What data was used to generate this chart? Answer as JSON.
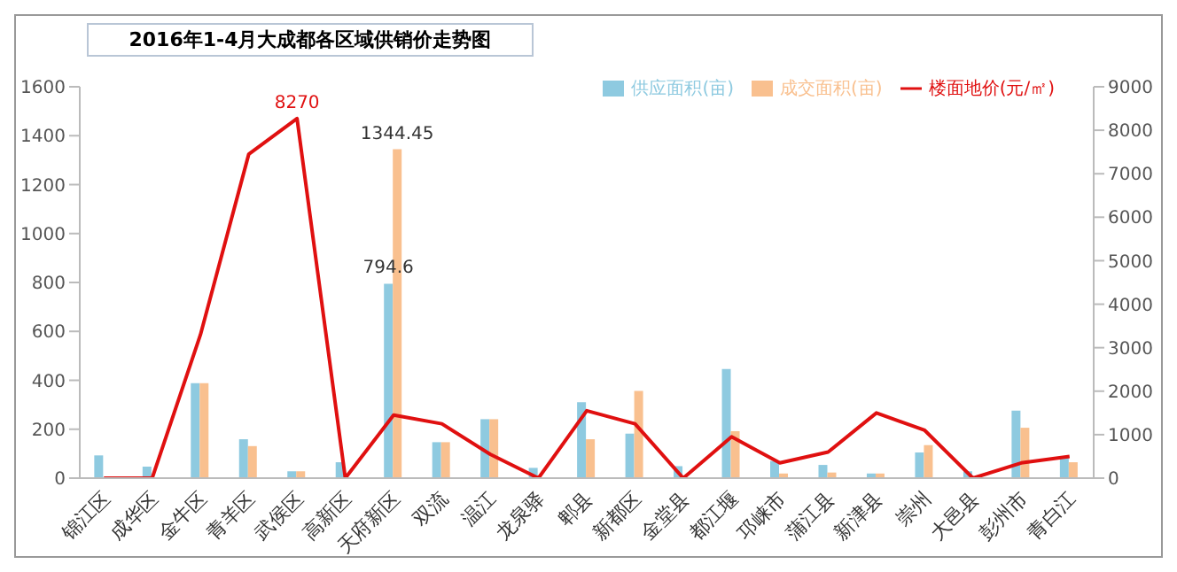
{
  "chart_data": {
    "type": "bar",
    "title": "2016年1-4月大成都各区域供销价走势图",
    "categories": [
      "锦江区",
      "成华区",
      "金牛区",
      "青羊区",
      "武侯区",
      "高新区",
      "天府新区",
      "双流",
      "温江",
      "龙泉驿",
      "郫县",
      "新都区",
      "金堂县",
      "都江堰",
      "邛崃市",
      "蒲江县",
      "新津县",
      "崇州",
      "大邑县",
      "彭州市",
      "青白江"
    ],
    "series": [
      {
        "name": "供应面积(亩)",
        "color": "#8ecae0",
        "values": [
          93,
          47,
          388,
          159,
          28,
          65,
          794.6,
          147,
          241,
          42,
          310,
          182,
          49,
          446,
          70,
          54,
          19,
          105,
          28,
          276,
          89
        ],
        "value_labels": [
          null,
          null,
          null,
          null,
          null,
          null,
          "794.6",
          null,
          null,
          null,
          null,
          null,
          null,
          null,
          null,
          null,
          null,
          null,
          null,
          null,
          null
        ]
      },
      {
        "name": "成交面积(亩)",
        "color": "#f9c08f",
        "values": [
          0,
          0,
          388,
          131,
          28,
          0,
          1344.45,
          147,
          241,
          0,
          159,
          357,
          0,
          192,
          19,
          23,
          19,
          135,
          0,
          206,
          65
        ],
        "value_labels": [
          null,
          null,
          null,
          null,
          null,
          null,
          "1344.45",
          null,
          null,
          null,
          null,
          null,
          null,
          null,
          null,
          null,
          null,
          null,
          null,
          null,
          null
        ]
      },
      {
        "name": "楼面地价(元/㎡)",
        "type": "line",
        "axis": "y2",
        "color": "#e01010",
        "values": [
          0,
          0,
          3300,
          7450,
          8270,
          0,
          1450,
          1250,
          550,
          0,
          1550,
          1250,
          0,
          950,
          350,
          600,
          1500,
          1100,
          0,
          350,
          500
        ],
        "value_labels": [
          null,
          null,
          null,
          null,
          "8270",
          null,
          null,
          null,
          null,
          null,
          null,
          null,
          null,
          null,
          null,
          null,
          null,
          null,
          null,
          null,
          null
        ]
      }
    ],
    "ylim": [
      0,
      1600
    ],
    "yticks": [
      0,
      200,
      400,
      600,
      800,
      1000,
      1200,
      1400,
      1600
    ],
    "y2lim": [
      0,
      9000
    ],
    "y2ticks": [
      0,
      1000,
      2000,
      3000,
      4000,
      5000,
      6000,
      7000,
      8000,
      9000
    ],
    "legend": "top right",
    "grid": false,
    "marker": "none"
  }
}
